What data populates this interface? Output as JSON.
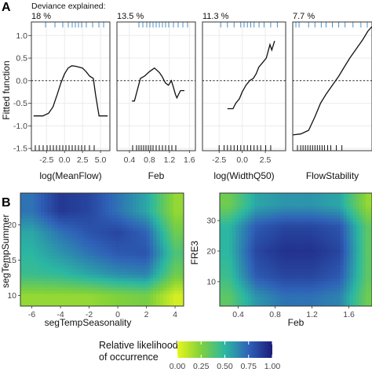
{
  "panel_labels": {
    "a": "A",
    "b": "B"
  },
  "deviance_header": "Deviance explained:",
  "partial_effects": {
    "ylabel": "Fitted function",
    "yticks": [
      "1.0",
      "0.5",
      "0.0",
      "-0.5",
      "-1.0",
      "-1.5"
    ],
    "ylim": [
      -1.55,
      1.3
    ],
    "rug_top_color": "#4a90c8",
    "rug_bottom_color": "#111111",
    "panels": [
      {
        "deviance": "18 %",
        "xlabel": "log(MeanFlow)",
        "xlim": [
          -4.6,
          6.3
        ],
        "xticks": [
          {
            "v": -2.5,
            "l": "-2.5"
          },
          {
            "v": 0.0,
            "l": "0.0"
          },
          {
            "v": 2.5,
            "l": "2.5"
          },
          {
            "v": 5.0,
            "l": "5.0"
          }
        ]
      },
      {
        "deviance": "13.5 %",
        "xlabel": "Feb",
        "xlim": [
          0.15,
          1.72
        ],
        "xticks": [
          {
            "v": 0.4,
            "l": "0.4"
          },
          {
            "v": 0.8,
            "l": "0.8"
          },
          {
            "v": 1.2,
            "l": "1.2"
          },
          {
            "v": 1.6,
            "l": "1.6"
          }
        ]
      },
      {
        "deviance": "11.3 %",
        "xlabel": "log(WidthQ50)",
        "xlim": [
          -4.3,
          4.7
        ],
        "xticks": [
          {
            "v": -2.5,
            "l": "-2.5"
          },
          {
            "v": 0.0,
            "l": "0.0"
          },
          {
            "v": 2.5,
            "l": "2.5"
          }
        ]
      },
      {
        "deviance": "7.7 %",
        "xlabel": "FlowStability",
        "xlim": [
          0,
          1
        ],
        "xticks": []
      }
    ]
  },
  "heatmaps": {
    "left": {
      "xlabel": "segTempSeasonality",
      "ylabel": "segTempSummer",
      "xticks": [
        "-6",
        "-4",
        "-2",
        "0",
        "2",
        "4"
      ],
      "yticks": [
        "10",
        "15",
        "20"
      ]
    },
    "right": {
      "xlabel": "Feb",
      "ylabel": "FRE3",
      "xticks": [
        "0.4",
        "0.8",
        "1.2",
        "1.6"
      ],
      "yticks": [
        "10",
        "20",
        "30"
      ]
    }
  },
  "legend": {
    "title_line1": "Relative likelihood",
    "title_line2": "of occurrence",
    "ticks": [
      "0.00",
      "0.25",
      "0.50",
      "0.75",
      "1.00"
    ]
  },
  "colors": {
    "panel_border": "#333333",
    "grid": "#ebebeb",
    "curve": "#111111"
  },
  "chart_data": [
    {
      "type": "line",
      "xlabel": "log(MeanFlow)",
      "ylabel": "Fitted function",
      "x": [
        -4.3,
        -3.0,
        -2.2,
        -1.6,
        -1.0,
        -0.5,
        0.0,
        0.5,
        1.0,
        1.5,
        2.0,
        2.5,
        3.0,
        3.5,
        4.0,
        4.3,
        4.8,
        5.5,
        6.0
      ],
      "y": [
        -0.78,
        -0.78,
        -0.72,
        -0.58,
        -0.3,
        -0.05,
        0.15,
        0.28,
        0.33,
        0.32,
        0.3,
        0.28,
        0.2,
        0.1,
        0.05,
        -0.3,
        -0.78,
        -0.78,
        -0.78
      ]
    },
    {
      "type": "line",
      "xlabel": "Feb",
      "ylabel": "Fitted function",
      "x": [
        0.45,
        0.5,
        0.56,
        0.62,
        0.7,
        0.8,
        0.9,
        1.0,
        1.05,
        1.12,
        1.18,
        1.24,
        1.28,
        1.32,
        1.35,
        1.42,
        1.5
      ],
      "y": [
        -0.45,
        -0.45,
        -0.2,
        0.05,
        0.1,
        0.2,
        0.28,
        0.18,
        0.1,
        -0.05,
        -0.1,
        0.0,
        -0.15,
        -0.3,
        -0.38,
        -0.22,
        -0.22
      ]
    },
    {
      "type": "line",
      "xlabel": "log(WidthQ50)",
      "ylabel": "Fitted function",
      "x": [
        -1.6,
        -1.0,
        -0.7,
        -0.3,
        0.0,
        0.4,
        0.8,
        1.2,
        1.5,
        1.8,
        2.2,
        2.6,
        3.0,
        3.2,
        3.5
      ],
      "y": [
        -0.62,
        -0.62,
        -0.5,
        -0.4,
        -0.25,
        -0.1,
        0.0,
        0.05,
        0.15,
        0.3,
        0.4,
        0.5,
        0.8,
        0.68,
        0.88
      ]
    },
    {
      "type": "line",
      "xlabel": "FlowStability",
      "ylabel": "Fitted function",
      "x": [
        0.0,
        0.1,
        0.2,
        0.28,
        0.35,
        0.42,
        0.5,
        0.58,
        0.65,
        0.72,
        0.8,
        0.88,
        0.95,
        1.0
      ],
      "y": [
        -1.2,
        -1.18,
        -1.1,
        -0.8,
        -0.5,
        -0.3,
        -0.1,
        0.1,
        0.3,
        0.5,
        0.7,
        0.9,
        1.1,
        1.2
      ]
    },
    {
      "type": "heatmap",
      "xlabel": "segTempSeasonality",
      "ylabel": "segTempSummer",
      "xlim": [
        -6.8,
        4.6
      ],
      "ylim": [
        8.5,
        24.5
      ],
      "x": [
        -6.0,
        -4.0,
        -2.0,
        0.0,
        2.0,
        4.0
      ],
      "y": [
        10.0,
        13.0,
        16.0,
        19.0,
        22.0
      ],
      "z": [
        [
          0.2,
          0.2,
          0.2,
          0.25,
          0.28,
          0.05
        ],
        [
          0.45,
          0.48,
          0.55,
          0.62,
          0.65,
          0.3
        ],
        [
          0.5,
          0.6,
          0.7,
          0.78,
          0.8,
          0.4
        ],
        [
          0.55,
          0.7,
          0.8,
          0.85,
          0.75,
          0.3
        ],
        [
          0.7,
          0.9,
          0.85,
          0.7,
          0.55,
          0.2
        ]
      ]
    },
    {
      "type": "heatmap",
      "xlabel": "Feb",
      "ylabel": "FRE3",
      "xlim": [
        0.2,
        1.85
      ],
      "ylim": [
        2,
        39
      ],
      "x": [
        0.3,
        0.6,
        0.9,
        1.2,
        1.5,
        1.8
      ],
      "y": [
        5,
        12,
        20,
        28,
        35
      ],
      "z": [
        [
          0.35,
          0.6,
          0.7,
          0.7,
          0.65,
          0.3
        ],
        [
          0.45,
          0.78,
          0.85,
          0.85,
          0.78,
          0.35
        ],
        [
          0.5,
          0.85,
          0.92,
          0.92,
          0.85,
          0.35
        ],
        [
          0.5,
          0.78,
          0.85,
          0.85,
          0.8,
          0.35
        ],
        [
          0.3,
          0.55,
          0.6,
          0.6,
          0.55,
          0.2
        ]
      ]
    }
  ]
}
